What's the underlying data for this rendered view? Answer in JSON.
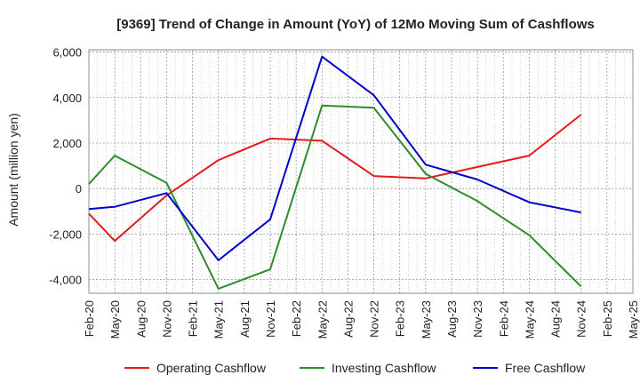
{
  "chart_data": {
    "type": "line",
    "title": "[9369]  Trend of Change in Amount (YoY) of 12Mo Moving Sum of Cashflows",
    "xlabel": "",
    "ylabel": "Amount (million yen)",
    "ylim": [
      -4600,
      6100
    ],
    "yticks": [
      6000,
      4000,
      2000,
      0,
      -2000,
      -4000
    ],
    "ytick_labels": [
      "6,000",
      "4,000",
      "2,000",
      "0",
      "-2,000",
      "-4,000"
    ],
    "categories": [
      "Feb-20",
      "May-20",
      "Aug-20",
      "Nov-20",
      "Feb-21",
      "May-21",
      "Aug-21",
      "Nov-21",
      "Feb-22",
      "May-22",
      "Aug-22",
      "Nov-22",
      "Feb-23",
      "May-23",
      "Aug-23",
      "Nov-23",
      "Feb-24",
      "May-24",
      "Aug-24",
      "Nov-24",
      "Feb-25",
      "May-25"
    ],
    "grid": true,
    "legend_position": "bottom",
    "series": [
      {
        "name": "Operating Cashflow",
        "color": "#e41a1c",
        "values": [
          -1100,
          -2300,
          null,
          -300,
          null,
          1250,
          null,
          2200,
          null,
          2100,
          null,
          550,
          null,
          450,
          null,
          950,
          null,
          1450,
          null,
          3250,
          null,
          null
        ]
      },
      {
        "name": "Investing Cashflow",
        "color": "#2e8b2e",
        "values": [
          200,
          1450,
          null,
          250,
          null,
          -4400,
          null,
          -3550,
          null,
          3650,
          null,
          3550,
          null,
          650,
          null,
          -550,
          null,
          -2050,
          null,
          -4300,
          null,
          null
        ]
      },
      {
        "name": "Free Cashflow",
        "color": "#0000cc",
        "values": [
          -900,
          -800,
          null,
          -200,
          null,
          -3150,
          null,
          -1350,
          null,
          5800,
          null,
          4100,
          null,
          1050,
          null,
          400,
          null,
          -600,
          null,
          -1050,
          null,
          null
        ]
      }
    ]
  }
}
